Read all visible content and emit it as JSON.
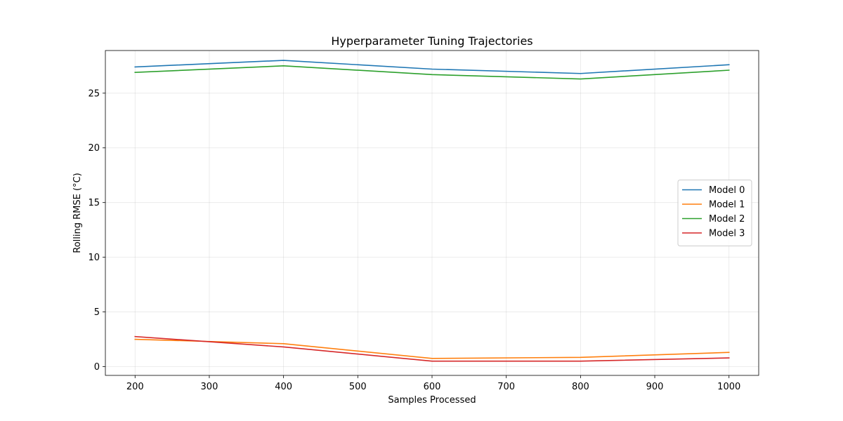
{
  "chart_data": {
    "type": "line",
    "title": "Hyperparameter Tuning Trajectories",
    "xlabel": "Samples Processed",
    "ylabel": "Rolling RMSE (°C)",
    "x": [
      200,
      400,
      600,
      800,
      1000
    ],
    "xlim": [
      160,
      1040
    ],
    "ylim": [
      -0.8,
      28.9
    ],
    "xticks": [
      200,
      300,
      400,
      500,
      600,
      700,
      800,
      900,
      1000
    ],
    "yticks": [
      0,
      5,
      10,
      15,
      20,
      25
    ],
    "grid": true,
    "legend_position": "center-right",
    "series": [
      {
        "name": "Model 0",
        "color": "#1f77b4",
        "values": [
          27.4,
          28.0,
          27.2,
          26.8,
          27.6
        ]
      },
      {
        "name": "Model 1",
        "color": "#ff7f0e",
        "values": [
          2.5,
          2.1,
          0.75,
          0.85,
          1.3
        ]
      },
      {
        "name": "Model 2",
        "color": "#2ca02c",
        "values": [
          26.9,
          27.5,
          26.7,
          26.3,
          27.1
        ]
      },
      {
        "name": "Model 3",
        "color": "#d62728",
        "values": [
          2.75,
          1.8,
          0.5,
          0.5,
          0.8
        ]
      }
    ]
  }
}
